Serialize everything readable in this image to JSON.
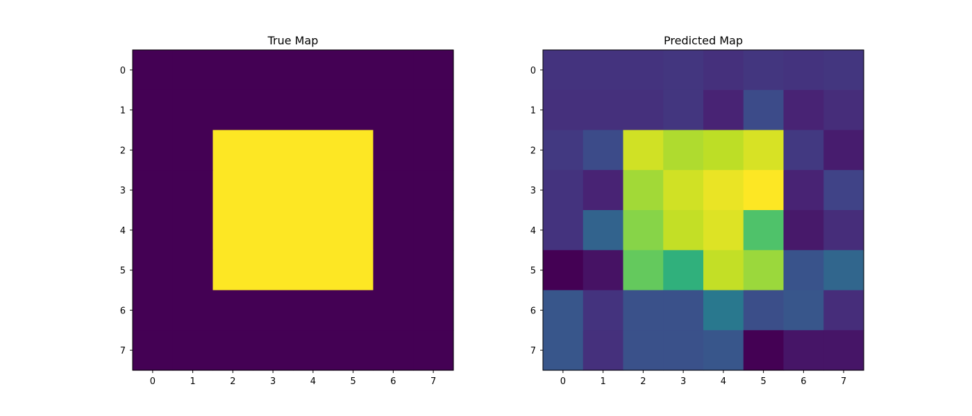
{
  "chart_data": [
    {
      "type": "heatmap",
      "title": "True Map",
      "colormap": "viridis",
      "value_range": [
        0,
        1
      ],
      "x_ticks": [
        "0",
        "1",
        "2",
        "3",
        "4",
        "5",
        "6",
        "7"
      ],
      "y_ticks": [
        "0",
        "1",
        "2",
        "3",
        "4",
        "5",
        "6",
        "7"
      ],
      "grid": false,
      "values": [
        [
          0,
          0,
          0,
          0,
          0,
          0,
          0,
          0
        ],
        [
          0,
          0,
          0,
          0,
          0,
          0,
          0,
          0
        ],
        [
          0,
          0,
          1,
          1,
          1,
          1,
          0,
          0
        ],
        [
          0,
          0,
          1,
          1,
          1,
          1,
          0,
          0
        ],
        [
          0,
          0,
          1,
          1,
          1,
          1,
          0,
          0
        ],
        [
          0,
          0,
          1,
          1,
          1,
          1,
          0,
          0
        ],
        [
          0,
          0,
          0,
          0,
          0,
          0,
          0,
          0
        ],
        [
          0,
          0,
          0,
          0,
          0,
          0,
          0,
          0
        ]
      ]
    },
    {
      "type": "heatmap",
      "title": "Predicted Map",
      "colormap": "viridis",
      "value_range": [
        0,
        1
      ],
      "x_ticks": [
        "0",
        "1",
        "2",
        "3",
        "4",
        "5",
        "6",
        "7"
      ],
      "y_ticks": [
        "0",
        "1",
        "2",
        "3",
        "4",
        "5",
        "6",
        "7"
      ],
      "grid": false,
      "values": [
        [
          0.15,
          0.15,
          0.15,
          0.16,
          0.14,
          0.16,
          0.15,
          0.16
        ],
        [
          0.14,
          0.14,
          0.14,
          0.16,
          0.1,
          0.23,
          0.1,
          0.13
        ],
        [
          0.17,
          0.23,
          0.93,
          0.88,
          0.9,
          0.94,
          0.17,
          0.08
        ],
        [
          0.15,
          0.1,
          0.86,
          0.93,
          0.97,
          1.0,
          0.1,
          0.2
        ],
        [
          0.15,
          0.32,
          0.82,
          0.91,
          0.95,
          0.72,
          0.07,
          0.13
        ],
        [
          0.0,
          0.05,
          0.76,
          0.64,
          0.91,
          0.85,
          0.26,
          0.33
        ],
        [
          0.27,
          0.15,
          0.25,
          0.25,
          0.4,
          0.24,
          0.27,
          0.13
        ],
        [
          0.27,
          0.14,
          0.25,
          0.25,
          0.27,
          0.0,
          0.06,
          0.06
        ]
      ]
    }
  ]
}
